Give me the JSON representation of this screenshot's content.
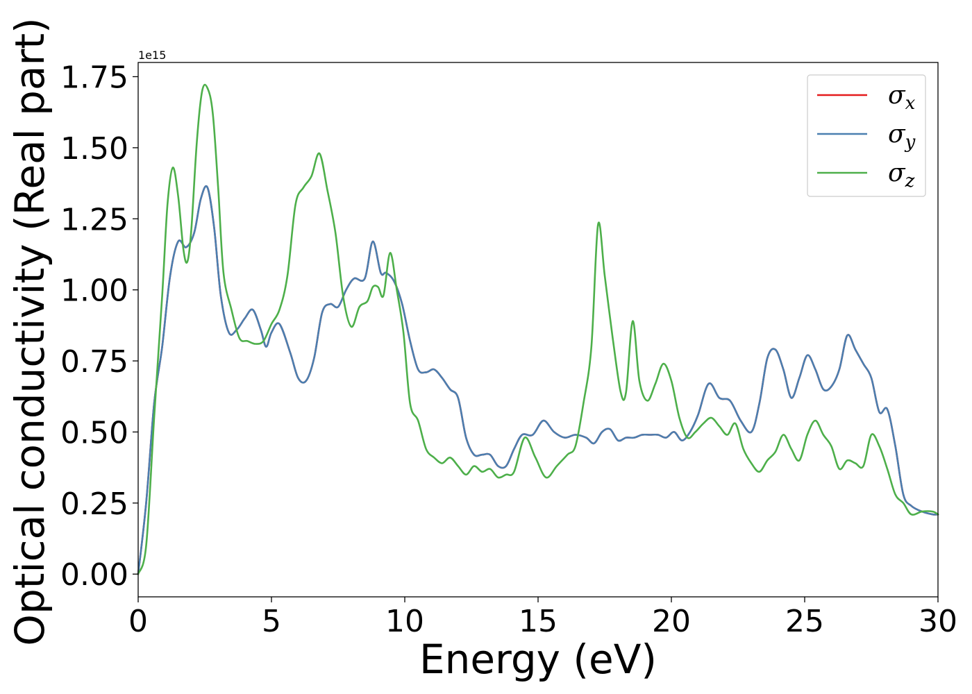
{
  "chart_data": {
    "type": "line",
    "title": "",
    "xlabel": "Energy (eV)",
    "ylabel": "Optical conductivity (Real part)",
    "y_offset_label": "1e15",
    "xlim": [
      0,
      30
    ],
    "ylim": [
      -0.08,
      1.8
    ],
    "xticks": [
      0,
      5,
      10,
      15,
      20,
      25,
      30
    ],
    "xtick_labels": [
      "0",
      "5",
      "10",
      "15",
      "20",
      "25",
      "30"
    ],
    "yticks": [
      0.0,
      0.25,
      0.5,
      0.75,
      1.0,
      1.25,
      1.5,
      1.75
    ],
    "ytick_labels": [
      "0.00",
      "0.25",
      "0.50",
      "0.75",
      "1.00",
      "1.25",
      "1.50",
      "1.75"
    ],
    "grid": false,
    "legend_position": "top-right",
    "series": [
      {
        "name": "σ",
        "subscript": "x",
        "color": "#e41a1c",
        "x": [
          0,
          0.3,
          0.6,
          0.9,
          1.2,
          1.5,
          1.8,
          2.1,
          2.35,
          2.6,
          2.85,
          3.1,
          3.4,
          3.7,
          4.0,
          4.3,
          4.6,
          4.8,
          5.0,
          5.3,
          5.7,
          6.0,
          6.3,
          6.6,
          6.9,
          7.2,
          7.5,
          7.8,
          8.1,
          8.5,
          8.8,
          9.1,
          9.3,
          9.6,
          9.9,
          10.2,
          10.5,
          10.8,
          11.1,
          11.4,
          11.7,
          12.0,
          12.3,
          12.6,
          12.9,
          13.2,
          13.5,
          13.8,
          14.1,
          14.4,
          14.8,
          15.2,
          15.6,
          16.0,
          16.4,
          16.8,
          17.1,
          17.4,
          17.7,
          18.0,
          18.3,
          18.6,
          18.9,
          19.2,
          19.5,
          19.8,
          20.1,
          20.4,
          20.7,
          21.0,
          21.4,
          21.8,
          22.2,
          22.6,
          23.0,
          23.3,
          23.6,
          23.9,
          24.2,
          24.5,
          24.8,
          25.1,
          25.4,
          25.7,
          26.0,
          26.3,
          26.6,
          26.9,
          27.2,
          27.5,
          27.8,
          28.1,
          28.4,
          28.7,
          29.0,
          29.4,
          29.8,
          30.0
        ],
        "values": [
          0.0,
          0.25,
          0.6,
          0.8,
          1.05,
          1.17,
          1.15,
          1.2,
          1.32,
          1.36,
          1.22,
          0.98,
          0.85,
          0.86,
          0.9,
          0.93,
          0.86,
          0.8,
          0.85,
          0.88,
          0.78,
          0.69,
          0.68,
          0.76,
          0.92,
          0.95,
          0.94,
          1.0,
          1.04,
          1.04,
          1.17,
          1.06,
          1.06,
          1.03,
          0.95,
          0.82,
          0.72,
          0.71,
          0.72,
          0.69,
          0.65,
          0.62,
          0.48,
          0.42,
          0.42,
          0.42,
          0.38,
          0.38,
          0.44,
          0.49,
          0.49,
          0.54,
          0.5,
          0.48,
          0.49,
          0.48,
          0.46,
          0.5,
          0.51,
          0.47,
          0.48,
          0.48,
          0.49,
          0.49,
          0.49,
          0.48,
          0.5,
          0.47,
          0.5,
          0.56,
          0.67,
          0.62,
          0.61,
          0.54,
          0.5,
          0.6,
          0.76,
          0.79,
          0.72,
          0.62,
          0.69,
          0.77,
          0.72,
          0.65,
          0.66,
          0.72,
          0.84,
          0.79,
          0.74,
          0.69,
          0.57,
          0.58,
          0.45,
          0.28,
          0.24,
          0.22,
          0.21,
          0.21
        ]
      },
      {
        "name": "σ",
        "subscript": "y",
        "color": "#4a7fb0",
        "x": [
          0,
          0.3,
          0.6,
          0.9,
          1.2,
          1.5,
          1.8,
          2.1,
          2.35,
          2.6,
          2.85,
          3.1,
          3.4,
          3.7,
          4.0,
          4.3,
          4.6,
          4.8,
          5.0,
          5.3,
          5.7,
          6.0,
          6.3,
          6.6,
          6.9,
          7.2,
          7.5,
          7.8,
          8.1,
          8.5,
          8.8,
          9.1,
          9.3,
          9.6,
          9.9,
          10.2,
          10.5,
          10.8,
          11.1,
          11.4,
          11.7,
          12.0,
          12.3,
          12.6,
          12.9,
          13.2,
          13.5,
          13.8,
          14.1,
          14.4,
          14.8,
          15.2,
          15.6,
          16.0,
          16.4,
          16.8,
          17.1,
          17.4,
          17.7,
          18.0,
          18.3,
          18.6,
          18.9,
          19.2,
          19.5,
          19.8,
          20.1,
          20.4,
          20.7,
          21.0,
          21.4,
          21.8,
          22.2,
          22.6,
          23.0,
          23.3,
          23.6,
          23.9,
          24.2,
          24.5,
          24.8,
          25.1,
          25.4,
          25.7,
          26.0,
          26.3,
          26.6,
          26.9,
          27.2,
          27.5,
          27.8,
          28.1,
          28.4,
          28.7,
          29.0,
          29.4,
          29.8,
          30.0
        ],
        "values": [
          0.0,
          0.25,
          0.6,
          0.8,
          1.05,
          1.17,
          1.15,
          1.2,
          1.32,
          1.36,
          1.22,
          0.98,
          0.85,
          0.86,
          0.9,
          0.93,
          0.86,
          0.8,
          0.85,
          0.88,
          0.78,
          0.69,
          0.68,
          0.76,
          0.92,
          0.95,
          0.94,
          1.0,
          1.04,
          1.04,
          1.17,
          1.06,
          1.06,
          1.03,
          0.95,
          0.82,
          0.72,
          0.71,
          0.72,
          0.69,
          0.65,
          0.62,
          0.48,
          0.42,
          0.42,
          0.42,
          0.38,
          0.38,
          0.44,
          0.49,
          0.49,
          0.54,
          0.5,
          0.48,
          0.49,
          0.48,
          0.46,
          0.5,
          0.51,
          0.47,
          0.48,
          0.48,
          0.49,
          0.49,
          0.49,
          0.48,
          0.5,
          0.47,
          0.5,
          0.56,
          0.67,
          0.62,
          0.61,
          0.54,
          0.5,
          0.6,
          0.76,
          0.79,
          0.72,
          0.62,
          0.69,
          0.77,
          0.72,
          0.65,
          0.66,
          0.72,
          0.84,
          0.79,
          0.74,
          0.69,
          0.57,
          0.58,
          0.45,
          0.28,
          0.24,
          0.22,
          0.21,
          0.21
        ]
      },
      {
        "name": "σ",
        "subscript": "z",
        "color": "#4daf4a",
        "x": [
          0,
          0.3,
          0.6,
          0.9,
          1.1,
          1.3,
          1.5,
          1.7,
          1.85,
          2.0,
          2.2,
          2.4,
          2.6,
          2.8,
          3.0,
          3.2,
          3.5,
          3.8,
          4.1,
          4.4,
          4.7,
          5.0,
          5.3,
          5.6,
          5.9,
          6.2,
          6.5,
          6.8,
          7.1,
          7.4,
          7.7,
          8.0,
          8.3,
          8.6,
          8.8,
          9.0,
          9.2,
          9.45,
          9.7,
          9.95,
          10.2,
          10.5,
          10.8,
          11.1,
          11.4,
          11.7,
          12.0,
          12.3,
          12.6,
          12.9,
          13.2,
          13.5,
          13.8,
          14.1,
          14.5,
          14.9,
          15.3,
          15.7,
          16.1,
          16.4,
          16.7,
          17.0,
          17.25,
          17.5,
          17.8,
          18.1,
          18.3,
          18.55,
          18.8,
          19.1,
          19.4,
          19.7,
          20.0,
          20.3,
          20.6,
          20.9,
          21.2,
          21.5,
          21.8,
          22.1,
          22.4,
          22.7,
          23.0,
          23.3,
          23.6,
          23.9,
          24.2,
          24.5,
          24.8,
          25.1,
          25.4,
          25.7,
          26.0,
          26.3,
          26.6,
          26.9,
          27.2,
          27.5,
          27.8,
          28.1,
          28.4,
          28.7,
          29.0,
          29.4,
          29.8,
          30.0
        ],
        "values": [
          0.0,
          0.1,
          0.55,
          0.98,
          1.3,
          1.43,
          1.33,
          1.14,
          1.1,
          1.22,
          1.52,
          1.7,
          1.71,
          1.62,
          1.36,
          1.06,
          0.93,
          0.83,
          0.82,
          0.81,
          0.82,
          0.88,
          0.93,
          1.05,
          1.3,
          1.36,
          1.4,
          1.48,
          1.35,
          1.2,
          0.97,
          0.87,
          0.94,
          0.96,
          1.01,
          1.01,
          0.98,
          1.13,
          1.0,
          0.85,
          0.6,
          0.54,
          0.44,
          0.41,
          0.39,
          0.41,
          0.38,
          0.35,
          0.38,
          0.36,
          0.37,
          0.34,
          0.35,
          0.36,
          0.48,
          0.41,
          0.34,
          0.38,
          0.42,
          0.45,
          0.6,
          0.8,
          1.23,
          1.05,
          0.83,
          0.64,
          0.64,
          0.89,
          0.68,
          0.61,
          0.67,
          0.74,
          0.68,
          0.55,
          0.48,
          0.5,
          0.53,
          0.55,
          0.52,
          0.49,
          0.53,
          0.44,
          0.39,
          0.36,
          0.4,
          0.43,
          0.49,
          0.44,
          0.4,
          0.49,
          0.54,
          0.49,
          0.45,
          0.37,
          0.4,
          0.39,
          0.38,
          0.49,
          0.45,
          0.37,
          0.28,
          0.25,
          0.21,
          0.22,
          0.22,
          0.21
        ]
      }
    ]
  }
}
